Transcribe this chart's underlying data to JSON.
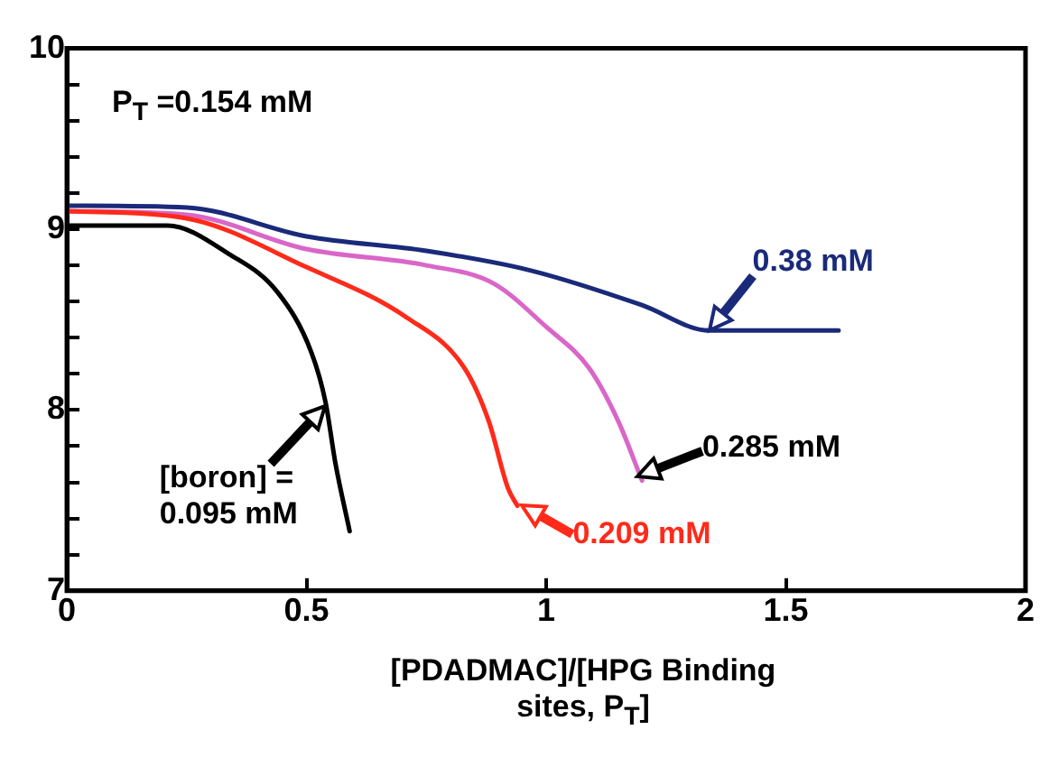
{
  "chart_data": {
    "type": "line",
    "xlabel": "[PDADMAC]/[HPG Binding sites, P$_{T}$]",
    "annotations": [
      "P$_{T}$ =0.154 mM",
      {
        "text": "[boron] = 0.095 mM",
        "x": 0.54,
        "y": 8.02
      },
      {
        "text": "0.209 mM",
        "x": 0.95,
        "y": 7.47
      },
      {
        "text": "0.285 mM",
        "x": 1.19,
        "y": 7.63
      },
      {
        "text": "0.38 mM",
        "x": 1.34,
        "y": 8.44
      }
    ],
    "xlim": [
      0,
      2
    ],
    "xticks": [
      0,
      0.5,
      1,
      1.5,
      2
    ],
    "ylim": [
      7,
      10
    ],
    "yticks": [
      7,
      {
        "value": 7.2,
        "label": null
      },
      {
        "value": 7.4,
        "label": null
      },
      {
        "value": 7.6,
        "label": null
      },
      {
        "value": 7.8,
        "label": null
      },
      8,
      {
        "value": 8.2,
        "label": null
      },
      {
        "value": 8.4,
        "label": null
      },
      {
        "value": 8.6,
        "label": null
      },
      {
        "value": 8.8,
        "label": null
      },
      9,
      {
        "value": 9.2,
        "label": null
      },
      {
        "value": 9.4,
        "label": null
      },
      {
        "value": 9.6,
        "label": null
      },
      {
        "value": 9.8,
        "label": null
      },
      10
    ],
    "grid": false,
    "legend": false,
    "marker": "none",
    "line_style": "solid",
    "series": [
      {
        "color": "#000000",
        "x": [
          0,
          0.1,
          0.21,
          0.34,
          0.44,
          0.51,
          0.54,
          0.56,
          0.59
        ],
        "values": [
          9.02,
          9.02,
          9.02,
          8.86,
          8.65,
          8.32,
          8.04,
          7.71,
          7.33
        ]
      },
      {
        "color": "#ff2a1a",
        "x": [
          0,
          0.25,
          0.5,
          0.71,
          0.83,
          0.88,
          0.92,
          0.94
        ],
        "values": [
          9.1,
          9.06,
          8.79,
          8.51,
          8.23,
          7.94,
          7.57,
          7.47
        ]
      },
      {
        "color": "#d966c8",
        "x": [
          0,
          0.25,
          0.5,
          0.75,
          0.89,
          1.0,
          1.09,
          1.15,
          1.2
        ],
        "values": [
          9.1,
          9.08,
          8.89,
          8.8,
          8.7,
          8.46,
          8.23,
          7.94,
          7.61
        ]
      },
      {
        "color": "#1a2a7a",
        "x": [
          0,
          0.25,
          0.5,
          0.75,
          0.97,
          1.2,
          1.34,
          1.45,
          1.61
        ],
        "values": [
          9.13,
          9.12,
          8.96,
          8.88,
          8.77,
          8.58,
          8.44,
          8.44,
          8.44
        ]
      }
    ]
  }
}
